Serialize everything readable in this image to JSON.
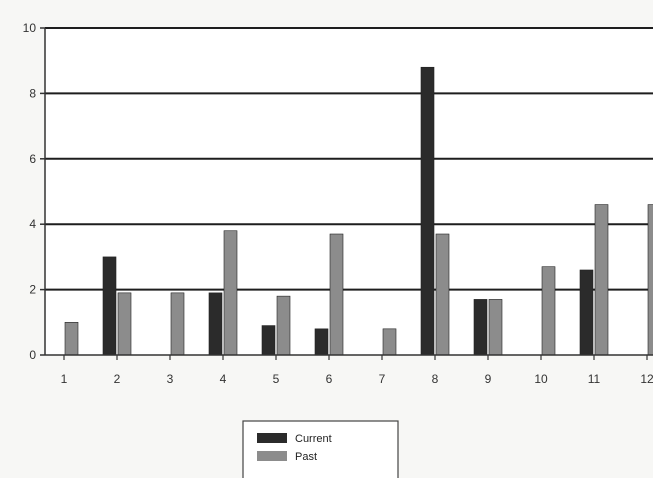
{
  "chart_data": {
    "type": "bar",
    "title": "",
    "xlabel": "",
    "ylabel": "",
    "categories": [
      "1",
      "2",
      "3",
      "4",
      "5",
      "6",
      "7",
      "8",
      "9",
      "10",
      "11",
      "12"
    ],
    "series": [
      {
        "name": "Current",
        "color": "#2b2b2b",
        "values": [
          0,
          3,
          0,
          1.9,
          0.9,
          0.8,
          0,
          8.8,
          1.7,
          0,
          2.6,
          0
        ]
      },
      {
        "name": "Past",
        "color": "#8c8c8c",
        "values": [
          1,
          1.9,
          1.9,
          3.8,
          1.8,
          3.7,
          0.8,
          3.7,
          1.7,
          2.7,
          4.6,
          4.6
        ]
      }
    ],
    "yticks": [
      0,
      2,
      4,
      6,
      8,
      10
    ],
    "ylim": [
      0,
      10
    ],
    "grid": true,
    "legend_position": "bottom-center"
  }
}
